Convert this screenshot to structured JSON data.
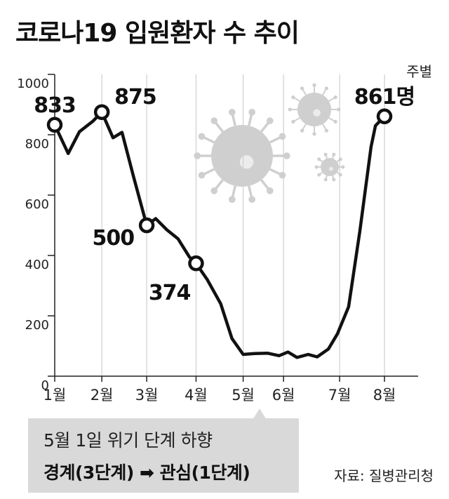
{
  "title": "코로나19 입원환자 수 추이",
  "unit_label": "주별",
  "note": {
    "line1": "5월 1일 위기 단계 하향",
    "line2": "경계(3단계) ➡ 관심(1단계)"
  },
  "source": "자료: 질병관리청",
  "colors": {
    "line": "#111111",
    "virus": "#cfcfcf",
    "note_bg": "#d9d9d9",
    "axis": "#222222"
  },
  "chart_data": {
    "type": "line",
    "title": "코로나19 입원환자 수 추이",
    "ylabel": "",
    "xlabel": "",
    "ylim": [
      0,
      1000
    ],
    "y_ticks": [
      0,
      200,
      400,
      600,
      800,
      1000
    ],
    "x_range": [
      0,
      8.1
    ],
    "x_ticks": [
      {
        "label": "1월",
        "x": 0
      },
      {
        "label": "2월",
        "x": 1.05
      },
      {
        "label": "3월",
        "x": 2.05
      },
      {
        "label": "4월",
        "x": 3.15
      },
      {
        "label": "5월",
        "x": 4.2
      },
      {
        "label": "6월",
        "x": 5.1
      },
      {
        "label": "7월",
        "x": 6.35
      },
      {
        "label": "8월",
        "x": 7.35
      }
    ],
    "grid": true,
    "series": [
      {
        "x": [
          0,
          0.3,
          0.55,
          0.85,
          1.05,
          1.3,
          1.5,
          1.75,
          2.05,
          2.25,
          2.5,
          2.75,
          3.0,
          3.15,
          3.4,
          3.7,
          3.95,
          4.2,
          4.45,
          4.75,
          5.0,
          5.2,
          5.4,
          5.65,
          5.85,
          6.1,
          6.3,
          6.55,
          6.8,
          7.05,
          7.15,
          7.35
        ],
        "y": [
          833,
          738,
          810,
          845,
          875,
          790,
          808,
          665,
          500,
          522,
          485,
          455,
          395,
          374,
          320,
          240,
          125,
          72,
          75,
          76,
          68,
          80,
          62,
          72,
          64,
          90,
          140,
          230,
          480,
          760,
          830,
          861
        ]
      }
    ],
    "annotations": [
      {
        "text": "833",
        "x": 0,
        "y": 833,
        "position": "above"
      },
      {
        "text": "875",
        "x": 1.05,
        "y": 875,
        "position": "right"
      },
      {
        "text": "500",
        "x": 2.05,
        "y": 500,
        "position": "left"
      },
      {
        "text": "374",
        "x": 3.15,
        "y": 374,
        "position": "below-left"
      },
      {
        "text": "861명",
        "x": 7.35,
        "y": 861,
        "position": "above"
      }
    ]
  }
}
